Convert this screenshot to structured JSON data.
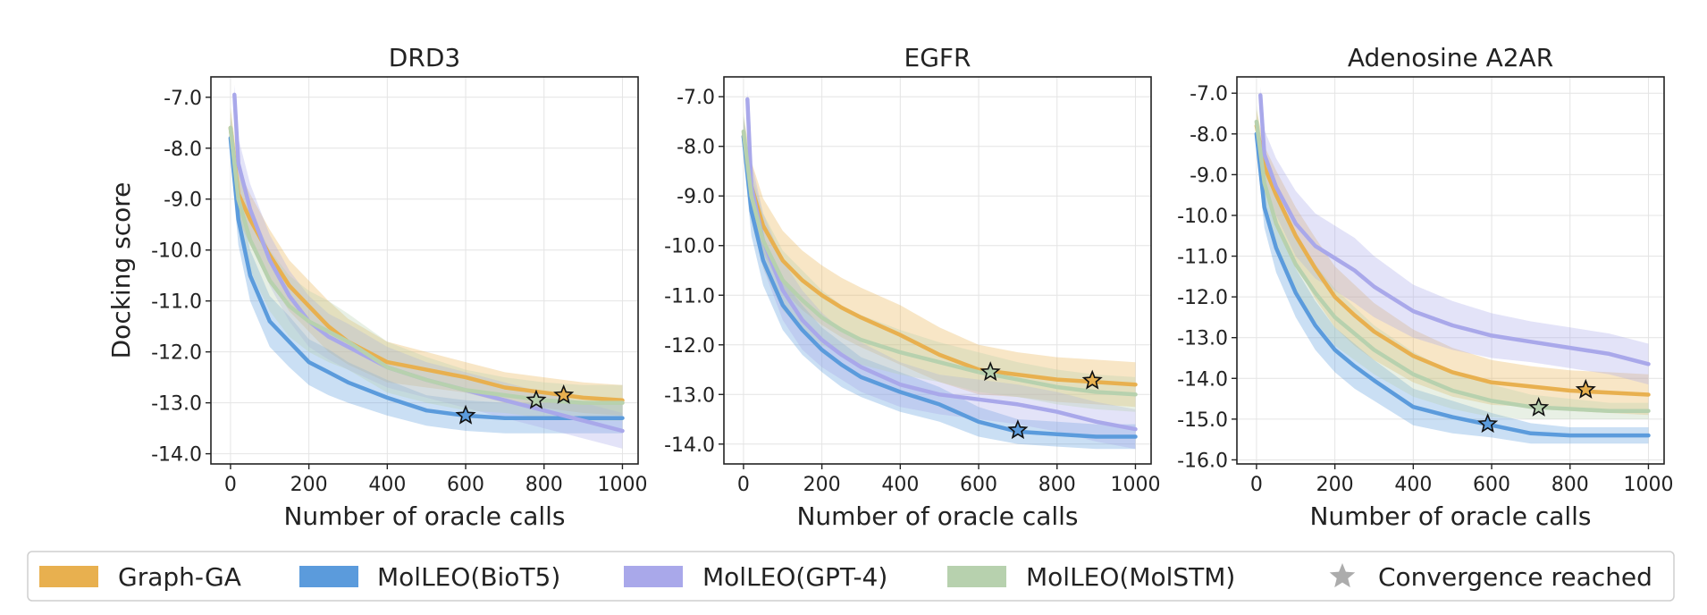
{
  "chart_data": [
    {
      "type": "line",
      "title": "DRD3",
      "xlabel": "Number of oracle calls",
      "ylabel": "Docking score",
      "xlim": [
        -50,
        1040
      ],
      "ylim": [
        -14.2,
        -6.6
      ],
      "xticks": [
        0,
        200,
        400,
        600,
        800,
        1000
      ],
      "xtick_labels": [
        "0",
        "200",
        "400",
        "600",
        "800",
        "1000"
      ],
      "yticks": [
        -7.0,
        -8.0,
        -9.0,
        -10.0,
        -11.0,
        -12.0,
        -13.0,
        -14.0
      ],
      "ytick_labels": [
        "-7.0",
        "-8.0",
        "-9.0",
        "-10.0",
        "-11.0",
        "-12.0",
        "-13.0",
        "-14.0"
      ],
      "grid": true,
      "series": [
        {
          "name": "Graph-GA",
          "color": "#E8B04F",
          "x": [
            0,
            20,
            50,
            100,
            150,
            200,
            250,
            300,
            400,
            500,
            600,
            700,
            800,
            900,
            1000
          ],
          "y": [
            -7.6,
            -8.9,
            -9.4,
            -10.1,
            -10.7,
            -11.1,
            -11.5,
            -11.8,
            -12.2,
            -12.35,
            -12.5,
            -12.7,
            -12.8,
            -12.9,
            -12.95
          ],
          "band": [
            0.4,
            0.5,
            0.5,
            0.5,
            0.5,
            0.5,
            0.5,
            0.45,
            0.4,
            0.35,
            0.3,
            0.3,
            0.3,
            0.3,
            0.3
          ],
          "converge": {
            "x": 850,
            "y": -12.85
          }
        },
        {
          "name": "MolLEO(BioT5)",
          "color": "#5B9BDC",
          "x": [
            0,
            20,
            50,
            100,
            150,
            200,
            250,
            300,
            400,
            500,
            600,
            700,
            800,
            900,
            1000
          ],
          "y": [
            -7.8,
            -9.4,
            -10.5,
            -11.4,
            -11.8,
            -12.2,
            -12.4,
            -12.6,
            -12.9,
            -13.15,
            -13.25,
            -13.3,
            -13.3,
            -13.3,
            -13.3
          ],
          "band": [
            0.4,
            0.5,
            0.5,
            0.5,
            0.5,
            0.45,
            0.45,
            0.4,
            0.35,
            0.3,
            0.3,
            0.3,
            0.3,
            0.3,
            0.3
          ],
          "converge": {
            "x": 600,
            "y": -13.25
          }
        },
        {
          "name": "MolLEO(GPT-4)",
          "color": "#A9A8EA",
          "x": [
            10,
            20,
            50,
            100,
            150,
            200,
            250,
            300,
            400,
            500,
            600,
            700,
            800,
            900,
            1000
          ],
          "y": [
            -6.95,
            -8.3,
            -9.2,
            -10.2,
            -10.9,
            -11.4,
            -11.7,
            -11.9,
            -12.3,
            -12.55,
            -12.75,
            -12.95,
            -13.15,
            -13.35,
            -13.55
          ],
          "band": [
            0.2,
            0.5,
            0.5,
            0.5,
            0.5,
            0.5,
            0.45,
            0.45,
            0.4,
            0.35,
            0.35,
            0.35,
            0.35,
            0.35,
            0.35
          ],
          "converge": null
        },
        {
          "name": "MolLEO(MolSTM)",
          "color": "#B7D1AE",
          "x": [
            0,
            20,
            50,
            100,
            150,
            200,
            250,
            300,
            400,
            500,
            600,
            700,
            800,
            900,
            1000
          ],
          "y": [
            -7.6,
            -9.0,
            -9.8,
            -10.6,
            -11.1,
            -11.4,
            -11.6,
            -11.8,
            -12.3,
            -12.55,
            -12.75,
            -12.85,
            -12.95,
            -13.0,
            -13.0
          ],
          "band": [
            0.4,
            0.5,
            0.6,
            0.6,
            0.6,
            0.6,
            0.6,
            0.55,
            0.5,
            0.45,
            0.4,
            0.35,
            0.35,
            0.35,
            0.35
          ],
          "converge": {
            "x": 780,
            "y": -12.95
          }
        }
      ]
    },
    {
      "type": "line",
      "title": "EGFR",
      "xlabel": "Number of oracle calls",
      "ylabel": "",
      "xlim": [
        -50,
        1040
      ],
      "ylim": [
        -14.4,
        -6.6
      ],
      "xticks": [
        0,
        200,
        400,
        600,
        800,
        1000
      ],
      "xtick_labels": [
        "0",
        "200",
        "400",
        "600",
        "800",
        "1000"
      ],
      "yticks": [
        -7.0,
        -8.0,
        -9.0,
        -10.0,
        -11.0,
        -12.0,
        -13.0,
        -14.0
      ],
      "ytick_labels": [
        "-7.0",
        "-8.0",
        "-9.0",
        "-10.0",
        "-11.0",
        "-12.0",
        "-13.0",
        "-14.0"
      ],
      "grid": true,
      "series": [
        {
          "name": "Graph-GA",
          "color": "#E8B04F",
          "x": [
            0,
            20,
            50,
            100,
            150,
            200,
            250,
            300,
            400,
            500,
            600,
            700,
            800,
            900,
            1000
          ],
          "y": [
            -7.8,
            -8.8,
            -9.6,
            -10.3,
            -10.7,
            -11.0,
            -11.25,
            -11.45,
            -11.8,
            -12.2,
            -12.5,
            -12.6,
            -12.7,
            -12.75,
            -12.8
          ],
          "band": [
            0.4,
            0.5,
            0.55,
            0.6,
            0.6,
            0.6,
            0.6,
            0.6,
            0.6,
            0.55,
            0.5,
            0.45,
            0.45,
            0.45,
            0.45
          ],
          "converge": {
            "x": 890,
            "y": -12.72
          }
        },
        {
          "name": "MolLEO(BioT5)",
          "color": "#5B9BDC",
          "x": [
            0,
            20,
            50,
            100,
            150,
            200,
            250,
            300,
            400,
            500,
            600,
            700,
            800,
            900,
            1000
          ],
          "y": [
            -7.8,
            -9.3,
            -10.3,
            -11.2,
            -11.7,
            -12.1,
            -12.4,
            -12.65,
            -12.95,
            -13.2,
            -13.55,
            -13.75,
            -13.8,
            -13.85,
            -13.85
          ],
          "band": [
            0.4,
            0.5,
            0.5,
            0.5,
            0.5,
            0.45,
            0.45,
            0.4,
            0.4,
            0.35,
            0.3,
            0.25,
            0.25,
            0.25,
            0.25
          ],
          "converge": {
            "x": 700,
            "y": -13.72
          }
        },
        {
          "name": "MolLEO(GPT-4)",
          "color": "#A9A8EA",
          "x": [
            10,
            20,
            50,
            100,
            150,
            200,
            250,
            300,
            400,
            500,
            600,
            700,
            800,
            900,
            1000
          ],
          "y": [
            -7.05,
            -8.8,
            -9.9,
            -10.9,
            -11.5,
            -11.9,
            -12.2,
            -12.45,
            -12.8,
            -13.0,
            -13.1,
            -13.2,
            -13.35,
            -13.55,
            -13.7
          ],
          "band": [
            0.2,
            0.5,
            0.55,
            0.6,
            0.6,
            0.55,
            0.5,
            0.5,
            0.45,
            0.4,
            0.4,
            0.4,
            0.4,
            0.4,
            0.4
          ],
          "converge": null
        },
        {
          "name": "MolLEO(MolSTM)",
          "color": "#B7D1AE",
          "x": [
            0,
            20,
            50,
            100,
            150,
            200,
            250,
            300,
            400,
            500,
            600,
            700,
            800,
            900,
            1000
          ],
          "y": [
            -7.7,
            -9.0,
            -9.9,
            -10.7,
            -11.1,
            -11.45,
            -11.7,
            -11.9,
            -12.15,
            -12.35,
            -12.55,
            -12.7,
            -12.85,
            -12.95,
            -13.0
          ],
          "band": [
            0.4,
            0.5,
            0.55,
            0.6,
            0.6,
            0.55,
            0.5,
            0.5,
            0.45,
            0.4,
            0.4,
            0.35,
            0.35,
            0.35,
            0.35
          ],
          "converge": {
            "x": 630,
            "y": -12.55
          }
        }
      ]
    },
    {
      "type": "line",
      "title": "Adenosine A2AR",
      "xlabel": "Number of oracle calls",
      "ylabel": "",
      "xlim": [
        -50,
        1040
      ],
      "ylim": [
        -16.1,
        -6.6
      ],
      "xticks": [
        0,
        200,
        400,
        600,
        800,
        1000
      ],
      "xtick_labels": [
        "0",
        "200",
        "400",
        "600",
        "800",
        "1000"
      ],
      "yticks": [
        -7.0,
        -8.0,
        -9.0,
        -10.0,
        -11.0,
        -12.0,
        -13.0,
        -14.0,
        -15.0,
        -16.0
      ],
      "ytick_labels": [
        "-7.0",
        "-8.0",
        "-9.0",
        "-10.0",
        "-11.0",
        "-12.0",
        "-13.0",
        "-14.0",
        "-15.0",
        "-16.0"
      ],
      "grid": true,
      "series": [
        {
          "name": "Graph-GA",
          "color": "#E8B04F",
          "x": [
            0,
            20,
            50,
            100,
            150,
            200,
            250,
            300,
            400,
            500,
            600,
            700,
            800,
            900,
            1000
          ],
          "y": [
            -7.8,
            -8.8,
            -9.5,
            -10.5,
            -11.3,
            -12.0,
            -12.45,
            -12.85,
            -13.45,
            -13.85,
            -14.1,
            -14.2,
            -14.3,
            -14.35,
            -14.4
          ],
          "band": [
            0.4,
            0.5,
            0.6,
            0.7,
            0.75,
            0.75,
            0.75,
            0.7,
            0.65,
            0.6,
            0.55,
            0.5,
            0.5,
            0.5,
            0.5
          ],
          "converge": {
            "x": 840,
            "y": -14.28
          }
        },
        {
          "name": "MolLEO(BioT5)",
          "color": "#5B9BDC",
          "x": [
            0,
            20,
            50,
            100,
            150,
            200,
            250,
            300,
            400,
            500,
            600,
            700,
            800,
            900,
            1000
          ],
          "y": [
            -8.0,
            -9.8,
            -10.8,
            -11.9,
            -12.7,
            -13.3,
            -13.7,
            -14.05,
            -14.7,
            -14.95,
            -15.15,
            -15.35,
            -15.4,
            -15.4,
            -15.4
          ],
          "band": [
            0.4,
            0.5,
            0.6,
            0.6,
            0.6,
            0.55,
            0.55,
            0.5,
            0.45,
            0.4,
            0.3,
            0.25,
            0.2,
            0.2,
            0.2
          ],
          "converge": {
            "x": 590,
            "y": -15.12
          }
        },
        {
          "name": "MolLEO(GPT-4)",
          "color": "#A9A8EA",
          "x": [
            10,
            20,
            50,
            100,
            150,
            200,
            250,
            300,
            400,
            500,
            600,
            700,
            800,
            900,
            1000
          ],
          "y": [
            -7.05,
            -8.5,
            -9.3,
            -10.2,
            -10.75,
            -11.05,
            -11.35,
            -11.75,
            -12.35,
            -12.7,
            -12.95,
            -13.1,
            -13.25,
            -13.4,
            -13.65
          ],
          "band": [
            0.2,
            0.6,
            0.7,
            0.8,
            0.8,
            0.8,
            0.8,
            0.75,
            0.65,
            0.6,
            0.55,
            0.5,
            0.5,
            0.5,
            0.5
          ],
          "converge": null
        },
        {
          "name": "MolLEO(MolSTM)",
          "color": "#B7D1AE",
          "x": [
            0,
            20,
            50,
            100,
            150,
            200,
            250,
            300,
            400,
            500,
            600,
            700,
            800,
            900,
            1000
          ],
          "y": [
            -7.7,
            -9.2,
            -10.2,
            -11.2,
            -11.9,
            -12.5,
            -12.9,
            -13.3,
            -13.9,
            -14.3,
            -14.55,
            -14.7,
            -14.75,
            -14.8,
            -14.8
          ],
          "band": [
            0.4,
            0.6,
            0.7,
            0.7,
            0.7,
            0.7,
            0.65,
            0.6,
            0.55,
            0.45,
            0.4,
            0.3,
            0.25,
            0.2,
            0.2
          ],
          "converge": {
            "x": 720,
            "y": -14.72
          }
        }
      ]
    }
  ],
  "legend": {
    "placement": "bottom",
    "items": [
      {
        "label": "Graph-GA",
        "color": "#E8B04F",
        "marker": "patch"
      },
      {
        "label": "MolLEO(BioT5)",
        "color": "#5B9BDC",
        "marker": "patch"
      },
      {
        "label": "MolLEO(GPT-4)",
        "color": "#A9A8EA",
        "marker": "patch"
      },
      {
        "label": "MolLEO(MolSTM)",
        "color": "#B7D1AE",
        "marker": "patch"
      },
      {
        "label": "Convergence reached",
        "color": "#ACACAC",
        "marker": "star"
      }
    ]
  }
}
